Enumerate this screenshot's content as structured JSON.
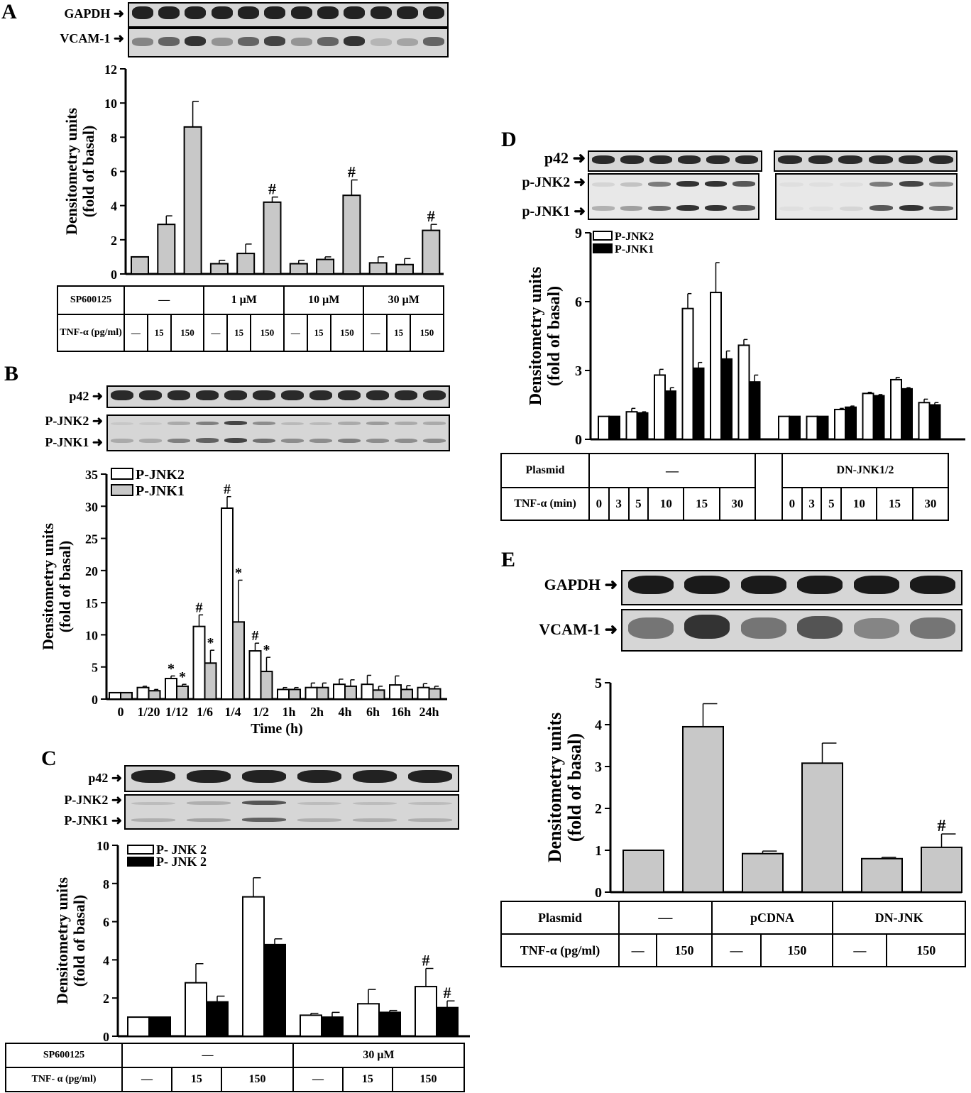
{
  "panels": {
    "A": {
      "label": "A",
      "blots": [
        "GAPDH",
        "VCAM-1"
      ],
      "table": {
        "row1_label": "SP600125",
        "groups": [
          "—",
          "1 μM",
          "10 μM",
          "30 μM"
        ],
        "row2_label": "TNF-α (pg/ml)",
        "tnf": [
          "—",
          "15",
          "150",
          "—",
          "15",
          "150",
          "—",
          "15",
          "150",
          "—",
          "15",
          "150"
        ]
      }
    },
    "B": {
      "label": "B",
      "blots": [
        "p42",
        "P-JNK2",
        "P-JNK1"
      ]
    },
    "C": {
      "label": "C",
      "blots": [
        "p42",
        "P-JNK2",
        "P-JNK1"
      ],
      "table": {
        "row1_label": "SP600125",
        "groups": [
          "—",
          "30 μM"
        ],
        "row2_label": "TNF- α (pg/ml)",
        "tnf": [
          "—",
          "15",
          "150",
          "—",
          "15",
          "150"
        ]
      }
    },
    "D": {
      "label": "D",
      "blots": [
        "p42",
        "p-JNK2",
        "p-JNK1"
      ],
      "table": {
        "row1_label": "Plasmid",
        "groups": [
          "—",
          "DN-JNK1/2"
        ],
        "row2_label": "TNF-α (min)",
        "times": [
          "0",
          "3",
          "5",
          "10",
          "15",
          "30",
          "0",
          "3",
          "5",
          "10",
          "15",
          "30"
        ]
      }
    },
    "E": {
      "label": "E",
      "blots": [
        "GAPDH",
        "VCAM-1"
      ],
      "table": {
        "row1_label": "Plasmid",
        "groups": [
          "—",
          "pCDNA",
          "DN-JNK"
        ],
        "row2_label": "TNF-α (pg/ml)",
        "tnf": [
          "—",
          "150",
          "—",
          "150",
          "—",
          "150"
        ]
      }
    }
  },
  "chart_data": [
    {
      "id": "A",
      "type": "bar",
      "ylabel": "Densitometry units (fold of basal)",
      "ylim": [
        0,
        12
      ],
      "yticks": [
        0,
        2,
        4,
        6,
        8,
        10,
        12
      ],
      "series": [
        {
          "name": "",
          "color": "#c8c8c8",
          "values": [
            1,
            2.9,
            8.6,
            0.6,
            1.2,
            4.2,
            0.6,
            0.85,
            4.6,
            0.65,
            0.55,
            2.55
          ],
          "errors": [
            0,
            0.5,
            1.5,
            0.2,
            0.55,
            0.3,
            0.2,
            0.15,
            0.9,
            0.35,
            0.35,
            0.35
          ]
        }
      ],
      "annotations": [
        {
          "index": 5,
          "text": "#"
        },
        {
          "index": 8,
          "text": "#"
        },
        {
          "index": 11,
          "text": "#"
        }
      ]
    },
    {
      "id": "B",
      "type": "bar",
      "ylabel": "Densitometry units (fold of basal)",
      "xlabel": "Time (h)",
      "categories": [
        "0",
        "1/20",
        "1/12",
        "1/6",
        "1/4",
        "1/2",
        "1h",
        "2h",
        "4h",
        "6h",
        "16h",
        "24h"
      ],
      "ylim": [
        0,
        35
      ],
      "yticks": [
        0,
        5,
        10,
        15,
        20,
        25,
        30,
        35
      ],
      "series": [
        {
          "name": "P-JNK2",
          "color": "#ffffff",
          "values": [
            1,
            1.8,
            3.2,
            11.3,
            29.7,
            7.5,
            1.5,
            1.8,
            2.3,
            2.3,
            2.2,
            1.8
          ],
          "errors": [
            0,
            0.2,
            0.4,
            1.8,
            1.8,
            1.2,
            0.3,
            0.7,
            0.8,
            1.4,
            1.4,
            0.6
          ]
        },
        {
          "name": "P-JNK1",
          "color": "#c8c8c8",
          "values": [
            1,
            1.3,
            2,
            5.6,
            12,
            4.3,
            1.5,
            1.8,
            2,
            1.4,
            1.5,
            1.6
          ],
          "errors": [
            0,
            0.2,
            0.3,
            2,
            6.5,
            2.2,
            0.3,
            0.7,
            1,
            0.6,
            0.6,
            0.4
          ]
        }
      ],
      "annotations": [
        {
          "index": 2,
          "series": 0,
          "text": "*"
        },
        {
          "index": 2,
          "series": 1,
          "text": "*"
        },
        {
          "index": 3,
          "series": 0,
          "text": "#"
        },
        {
          "index": 3,
          "series": 1,
          "text": "*"
        },
        {
          "index": 4,
          "series": 0,
          "text": "#"
        },
        {
          "index": 4,
          "series": 1,
          "text": "*"
        },
        {
          "index": 5,
          "series": 0,
          "text": "#"
        },
        {
          "index": 5,
          "series": 1,
          "text": "*"
        }
      ]
    },
    {
      "id": "C",
      "type": "bar",
      "ylabel": "Densitometry units (fold of basal)",
      "ylim": [
        0,
        10
      ],
      "yticks": [
        0,
        2,
        4,
        6,
        8,
        10
      ],
      "series": [
        {
          "name": "P- JNK 2",
          "color": "#ffffff",
          "values": [
            1,
            2.8,
            7.3,
            1.1,
            1.7,
            2.6
          ],
          "errors": [
            0,
            1,
            1,
            0.1,
            0.75,
            0.95
          ]
        },
        {
          "name": "P- JNK 2",
          "color": "#000000",
          "values": [
            1,
            1.8,
            4.8,
            1,
            1.25,
            1.5
          ],
          "errors": [
            0,
            0.3,
            0.3,
            0.25,
            0.1,
            0.35
          ]
        }
      ],
      "annotations": [
        {
          "index": 5,
          "series": 0,
          "text": "#"
        },
        {
          "index": 5,
          "series": 1,
          "text": "#"
        }
      ]
    },
    {
      "id": "D",
      "type": "bar",
      "ylabel": "Densitometry units (fold of basal)",
      "ylim": [
        0,
        9
      ],
      "yticks": [
        0,
        3,
        6,
        9
      ],
      "series": [
        {
          "name": "P-JNK2",
          "color": "#ffffff",
          "values": [
            1,
            1.2,
            2.8,
            5.7,
            6.4,
            4.1,
            1,
            1,
            1.3,
            2,
            2.6,
            1.6
          ],
          "errors": [
            0,
            0.15,
            0.25,
            0.65,
            1.3,
            0.25,
            0,
            0,
            0.05,
            0.05,
            0.1,
            0.15
          ]
        },
        {
          "name": "P-JNK1",
          "color": "#000000",
          "values": [
            1,
            1.15,
            2.1,
            3.1,
            3.5,
            2.5,
            1,
            1,
            1.4,
            1.9,
            2.2,
            1.5
          ],
          "errors": [
            0,
            0.05,
            0.15,
            0.25,
            0.35,
            0.3,
            0,
            0,
            0.05,
            0.05,
            0.05,
            0.1
          ]
        }
      ]
    },
    {
      "id": "E",
      "type": "bar",
      "ylabel": "Densitometry units (fold of basal)",
      "ylim": [
        0,
        5
      ],
      "yticks": [
        0,
        1,
        2,
        3,
        4,
        5
      ],
      "series": [
        {
          "name": "",
          "color": "#c8c8c8",
          "values": [
            1,
            3.95,
            0.92,
            3.08,
            0.8,
            1.07
          ],
          "errors": [
            0,
            0.55,
            0.06,
            0.48,
            0.03,
            0.32
          ]
        }
      ],
      "annotations": [
        {
          "index": 5,
          "text": "#"
        }
      ]
    }
  ]
}
